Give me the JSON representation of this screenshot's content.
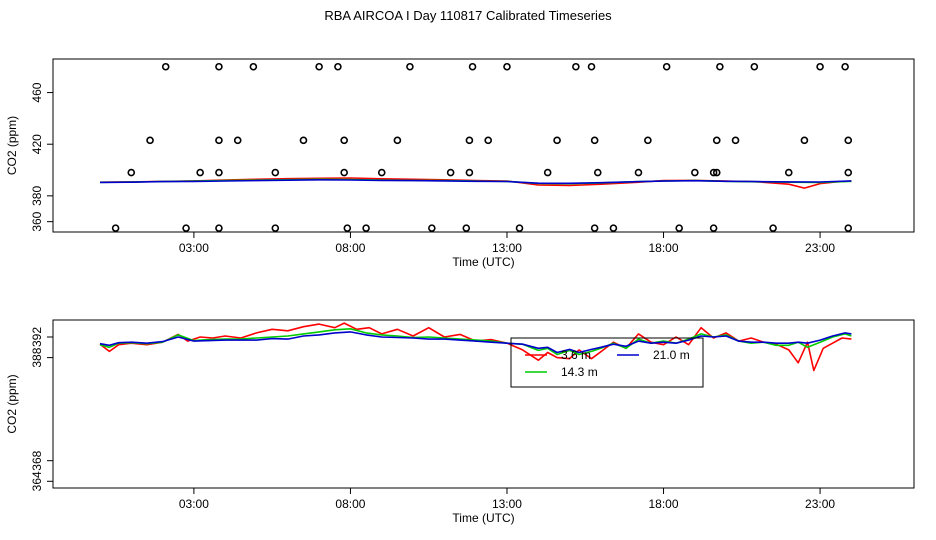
{
  "title": "RBA AIRCOA I  Day 110817  Calibrated Timeseries",
  "chart_data": [
    {
      "type": "scatter+line",
      "xlabel": "Time (UTC)",
      "ylabel": "CO2 (ppm)",
      "xlim": [
        -1.5,
        26
      ],
      "ylim": [
        352,
        486
      ],
      "x_ticks": [
        3,
        8,
        13,
        18,
        23
      ],
      "x_tick_labels": [
        "03:00",
        "08:00",
        "13:00",
        "18:00",
        "23:00"
      ],
      "y_ticks": [
        360,
        380,
        420,
        460
      ],
      "y_tick_labels": [
        "360",
        "380",
        "420",
        "460"
      ],
      "calibration_points": {
        "levels": [
          355,
          398,
          423,
          480
        ],
        "x_at_355": [
          0.5,
          2.75,
          3.8,
          5.6,
          7.9,
          8.5,
          10.6,
          11.7,
          13.4,
          15.8,
          16.4,
          18.5,
          19.6,
          21.5,
          23.9
        ],
        "x_at_398": [
          1.0,
          3.2,
          3.8,
          5.6,
          7.8,
          9.0,
          11.2,
          11.8,
          14.3,
          15.9,
          17.2,
          19.0,
          19.6,
          19.7,
          22.0,
          23.9
        ],
        "x_at_423": [
          1.6,
          3.8,
          4.4,
          6.5,
          7.8,
          9.5,
          11.8,
          12.4,
          14.6,
          15.8,
          17.5,
          19.7,
          20.3,
          22.5,
          23.9
        ],
        "x_at_480": [
          2.1,
          3.8,
          4.9,
          7.0,
          7.6,
          9.9,
          11.9,
          13.0,
          15.2,
          15.7,
          18.1,
          19.8,
          20.9,
          23.0,
          23.8
        ]
      },
      "series": [
        {
          "name": "3.6 m",
          "color": "#ff0000",
          "x": [
            0,
            1,
            2,
            3,
            4,
            5,
            6,
            7,
            8,
            9,
            10,
            11,
            12,
            13,
            14,
            15,
            16,
            17,
            18,
            19,
            20,
            21,
            22,
            22.5,
            23,
            23.5,
            24
          ],
          "values": [
            390.6,
            390.8,
            391.2,
            391.6,
            392.2,
            392.8,
            393.3,
            393.6,
            393.8,
            393.2,
            392.8,
            392.4,
            391.8,
            391.5,
            388.5,
            388.0,
            389.0,
            390.3,
            391.8,
            392.0,
            391.5,
            390.9,
            389.0,
            386.0,
            389.5,
            390.8,
            391.5
          ]
        },
        {
          "name": "14.3 m",
          "color": "#00cc00",
          "x": [
            0,
            1,
            2,
            3,
            4,
            5,
            6,
            7,
            8,
            9,
            10,
            11,
            12,
            13,
            14,
            15,
            16,
            17,
            18,
            19,
            20,
            21,
            22,
            23,
            24
          ],
          "values": [
            390.5,
            390.7,
            391.1,
            391.4,
            391.8,
            392.1,
            392.5,
            392.8,
            392.6,
            392.2,
            392.0,
            391.8,
            391.5,
            391.2,
            389.6,
            389.4,
            390.0,
            390.9,
            391.5,
            391.8,
            391.3,
            390.9,
            390.6,
            390.4,
            391.3
          ]
        },
        {
          "name": "21.0 m",
          "color": "#0000cc",
          "x": [
            0,
            1,
            2,
            3,
            4,
            5,
            6,
            7,
            8,
            9,
            10,
            11,
            12,
            13,
            14,
            15,
            16,
            17,
            18,
            19,
            20,
            21,
            22,
            23,
            24
          ],
          "values": [
            390.4,
            390.6,
            391.0,
            391.2,
            391.5,
            391.8,
            392.1,
            392.4,
            392.3,
            392.0,
            391.8,
            391.6,
            391.3,
            391.1,
            389.8,
            389.7,
            390.2,
            390.9,
            391.4,
            391.7,
            391.3,
            391.0,
            390.8,
            390.7,
            391.6
          ]
        }
      ]
    },
    {
      "type": "line",
      "xlabel": "Time (UTC)",
      "ylabel": "CO2 (ppm)",
      "xlim": [
        -1.5,
        26
      ],
      "ylim": [
        362.7,
        395.3
      ],
      "x_ticks": [
        3,
        8,
        13,
        18,
        23
      ],
      "x_tick_labels": [
        "03:00",
        "08:00",
        "13:00",
        "18:00",
        "23:00"
      ],
      "y_ticks": [
        364,
        368,
        388,
        392
      ],
      "y_tick_labels": [
        "364",
        "368",
        "388",
        "392"
      ],
      "legend": {
        "position": "top-center"
      },
      "series": [
        {
          "name": "3.6 m",
          "color": "#ff0000",
          "x": [
            0,
            0.3,
            0.6,
            1.0,
            1.5,
            2.0,
            2.5,
            2.8,
            3.2,
            3.6,
            4.0,
            4.5,
            5.0,
            5.5,
            6.0,
            6.5,
            7.0,
            7.5,
            7.8,
            8.2,
            8.6,
            9.0,
            9.5,
            10.0,
            10.5,
            11.0,
            11.5,
            12.0,
            12.5,
            13.0,
            13.5,
            14.0,
            14.3,
            14.6,
            15.0,
            15.3,
            15.7,
            16.1,
            16.4,
            16.8,
            17.2,
            17.6,
            18.0,
            18.4,
            18.8,
            19.2,
            19.6,
            20.0,
            20.4,
            20.8,
            21.2,
            21.6,
            22.0,
            22.3,
            22.6,
            22.8,
            23.1,
            23.4,
            23.7,
            24.0
          ],
          "values": [
            390.6,
            389.2,
            390.5,
            390.8,
            390.5,
            391.0,
            392.5,
            391.2,
            392.0,
            391.8,
            392.2,
            391.8,
            392.8,
            393.5,
            393.2,
            394.0,
            394.5,
            393.8,
            394.7,
            393.5,
            393.8,
            392.6,
            393.5,
            392.2,
            393.8,
            392.0,
            392.5,
            391.2,
            391.5,
            390.8,
            389.5,
            387.5,
            389.0,
            388.0,
            387.8,
            389.5,
            387.8,
            389.6,
            391.0,
            389.8,
            392.6,
            391.0,
            390.5,
            392.0,
            390.5,
            393.8,
            391.8,
            392.8,
            391.2,
            391.8,
            391.0,
            390.6,
            389.5,
            387.0,
            391.0,
            385.5,
            389.8,
            390.8,
            391.8,
            391.6
          ]
        },
        {
          "name": "14.3 m",
          "color": "#00cc00",
          "x": [
            0,
            0.3,
            0.6,
            1.0,
            1.5,
            2.0,
            2.5,
            3.0,
            3.5,
            4.0,
            4.5,
            5.0,
            5.5,
            6.0,
            6.5,
            7.0,
            7.5,
            8.0,
            8.5,
            9.0,
            9.5,
            10.0,
            10.5,
            11.0,
            11.5,
            12.0,
            12.5,
            13.0,
            13.5,
            14.0,
            14.3,
            14.6,
            15.0,
            15.3,
            15.7,
            16.0,
            16.4,
            16.8,
            17.2,
            17.6,
            18.0,
            18.4,
            18.8,
            19.2,
            19.6,
            20.0,
            20.4,
            20.8,
            21.2,
            21.6,
            22.0,
            22.3,
            22.6,
            23.0,
            23.4,
            23.8,
            24.0
          ],
          "values": [
            390.5,
            390.0,
            390.8,
            390.9,
            390.7,
            391.0,
            392.4,
            391.3,
            391.5,
            391.6,
            391.6,
            391.8,
            392.0,
            392.2,
            392.6,
            393.0,
            393.4,
            393.6,
            392.8,
            392.4,
            392.2,
            391.9,
            392.0,
            391.8,
            391.6,
            391.4,
            391.2,
            390.8,
            390.6,
            389.4,
            389.8,
            388.6,
            389.4,
            388.6,
            389.2,
            389.8,
            390.8,
            389.8,
            391.6,
            390.8,
            391.2,
            390.8,
            391.6,
            392.6,
            392.0,
            392.4,
            391.2,
            390.8,
            391.0,
            390.4,
            390.4,
            391.0,
            390.0,
            391.0,
            392.0,
            392.6,
            392.2
          ]
        },
        {
          "name": "21.0 m",
          "color": "#0000cc",
          "x": [
            0,
            0.3,
            0.6,
            1.0,
            1.5,
            2.0,
            2.5,
            3.0,
            3.5,
            4.0,
            4.5,
            5.0,
            5.5,
            6.0,
            6.5,
            7.0,
            7.5,
            8.0,
            8.5,
            9.0,
            9.5,
            10.0,
            10.5,
            11.0,
            11.5,
            12.0,
            12.5,
            13.0,
            13.5,
            14.0,
            14.3,
            14.6,
            15.0,
            15.3,
            15.7,
            16.0,
            16.4,
            16.8,
            17.2,
            17.6,
            18.0,
            18.4,
            18.8,
            19.2,
            19.6,
            20.0,
            20.4,
            20.8,
            21.2,
            21.6,
            22.0,
            22.3,
            22.6,
            23.0,
            23.4,
            23.8,
            24.0
          ],
          "values": [
            390.7,
            390.4,
            390.9,
            391.0,
            390.8,
            391.1,
            392.0,
            391.2,
            391.3,
            391.4,
            391.4,
            391.4,
            391.7,
            391.6,
            392.2,
            392.4,
            392.8,
            393.0,
            392.4,
            392.0,
            391.9,
            391.8,
            391.6,
            391.6,
            391.4,
            391.2,
            391.0,
            390.8,
            390.6,
            389.8,
            390.0,
            389.0,
            389.6,
            389.0,
            389.6,
            390.0,
            390.6,
            390.2,
            391.2,
            390.8,
            391.0,
            390.8,
            391.4,
            392.2,
            392.0,
            392.2,
            391.2,
            391.0,
            391.0,
            390.8,
            390.8,
            391.0,
            390.8,
            391.4,
            392.2,
            392.8,
            392.6
          ]
        }
      ]
    }
  ]
}
